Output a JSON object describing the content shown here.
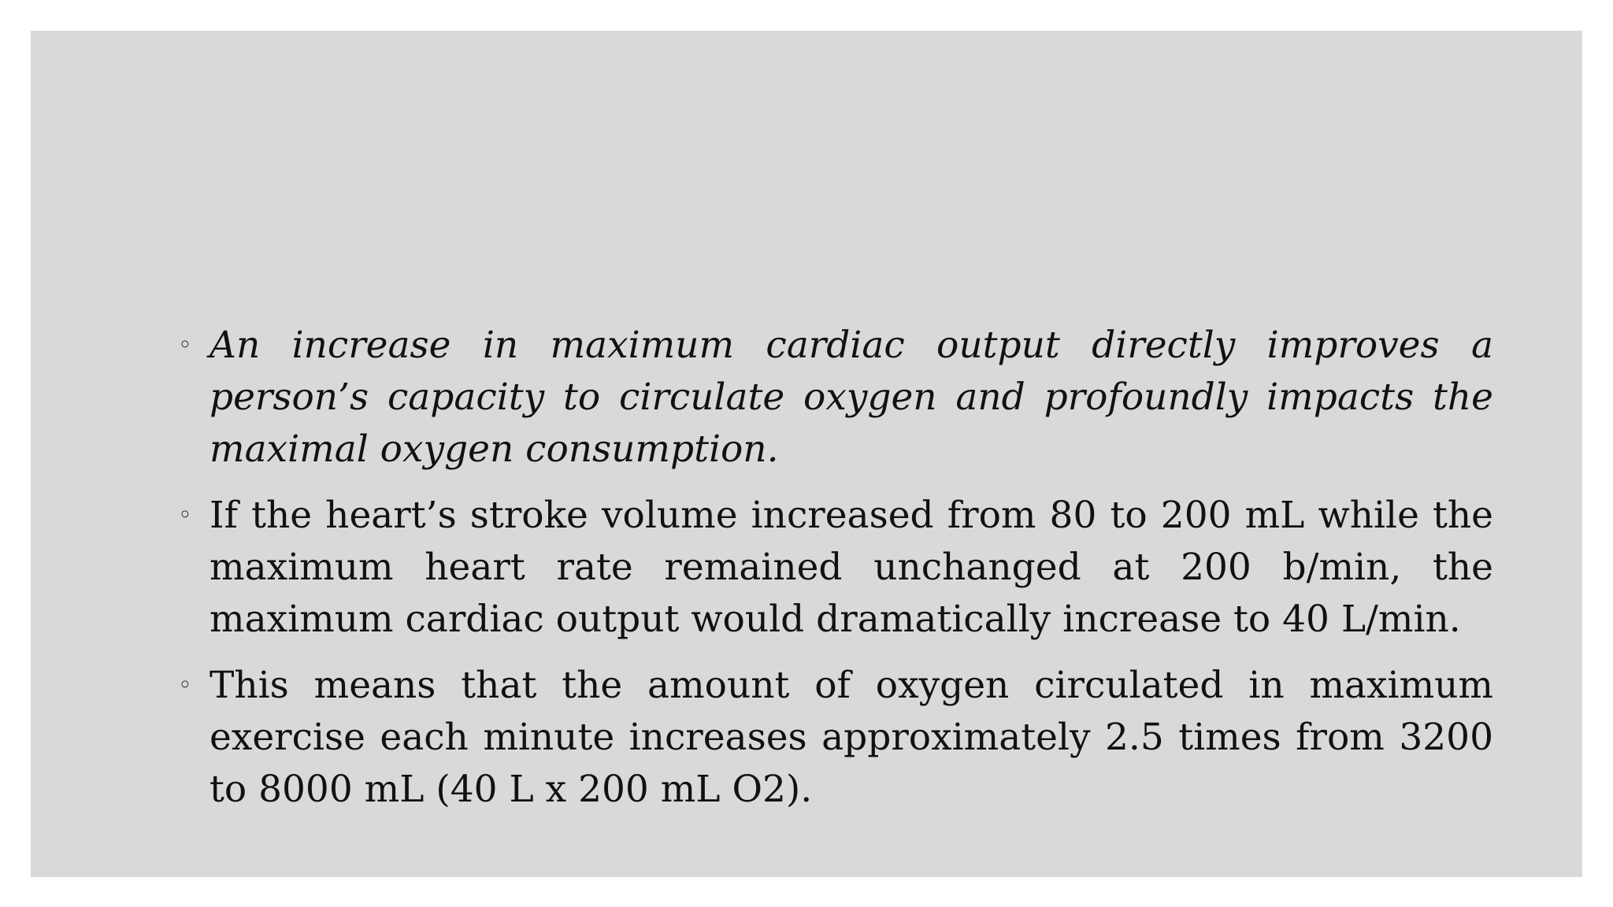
{
  "slide": {
    "bullet_marker": "◦",
    "bullets": [
      {
        "style": "italic",
        "text": "An increase in maximum cardiac output directly improves a person’s capacity to circulate oxygen and profoundly impacts the maximal oxygen consumption."
      },
      {
        "style": "normal",
        "text": "If the heart’s stroke volume increased from 80 to 200 mL while the maximum heart rate remained unchanged at 200 b/min, the maximum cardiac output would dramatically increase to 40 L/min."
      },
      {
        "style": "normal",
        "text": "This means that the amount of oxygen circulated in maximum exercise each minute increases approximately 2.5 times from 3200 to 8000 mL (40 L x 200 mL O2)."
      }
    ],
    "colors": {
      "background": "#d9d9d9",
      "page": "#ffffff",
      "text": "#111111"
    }
  }
}
